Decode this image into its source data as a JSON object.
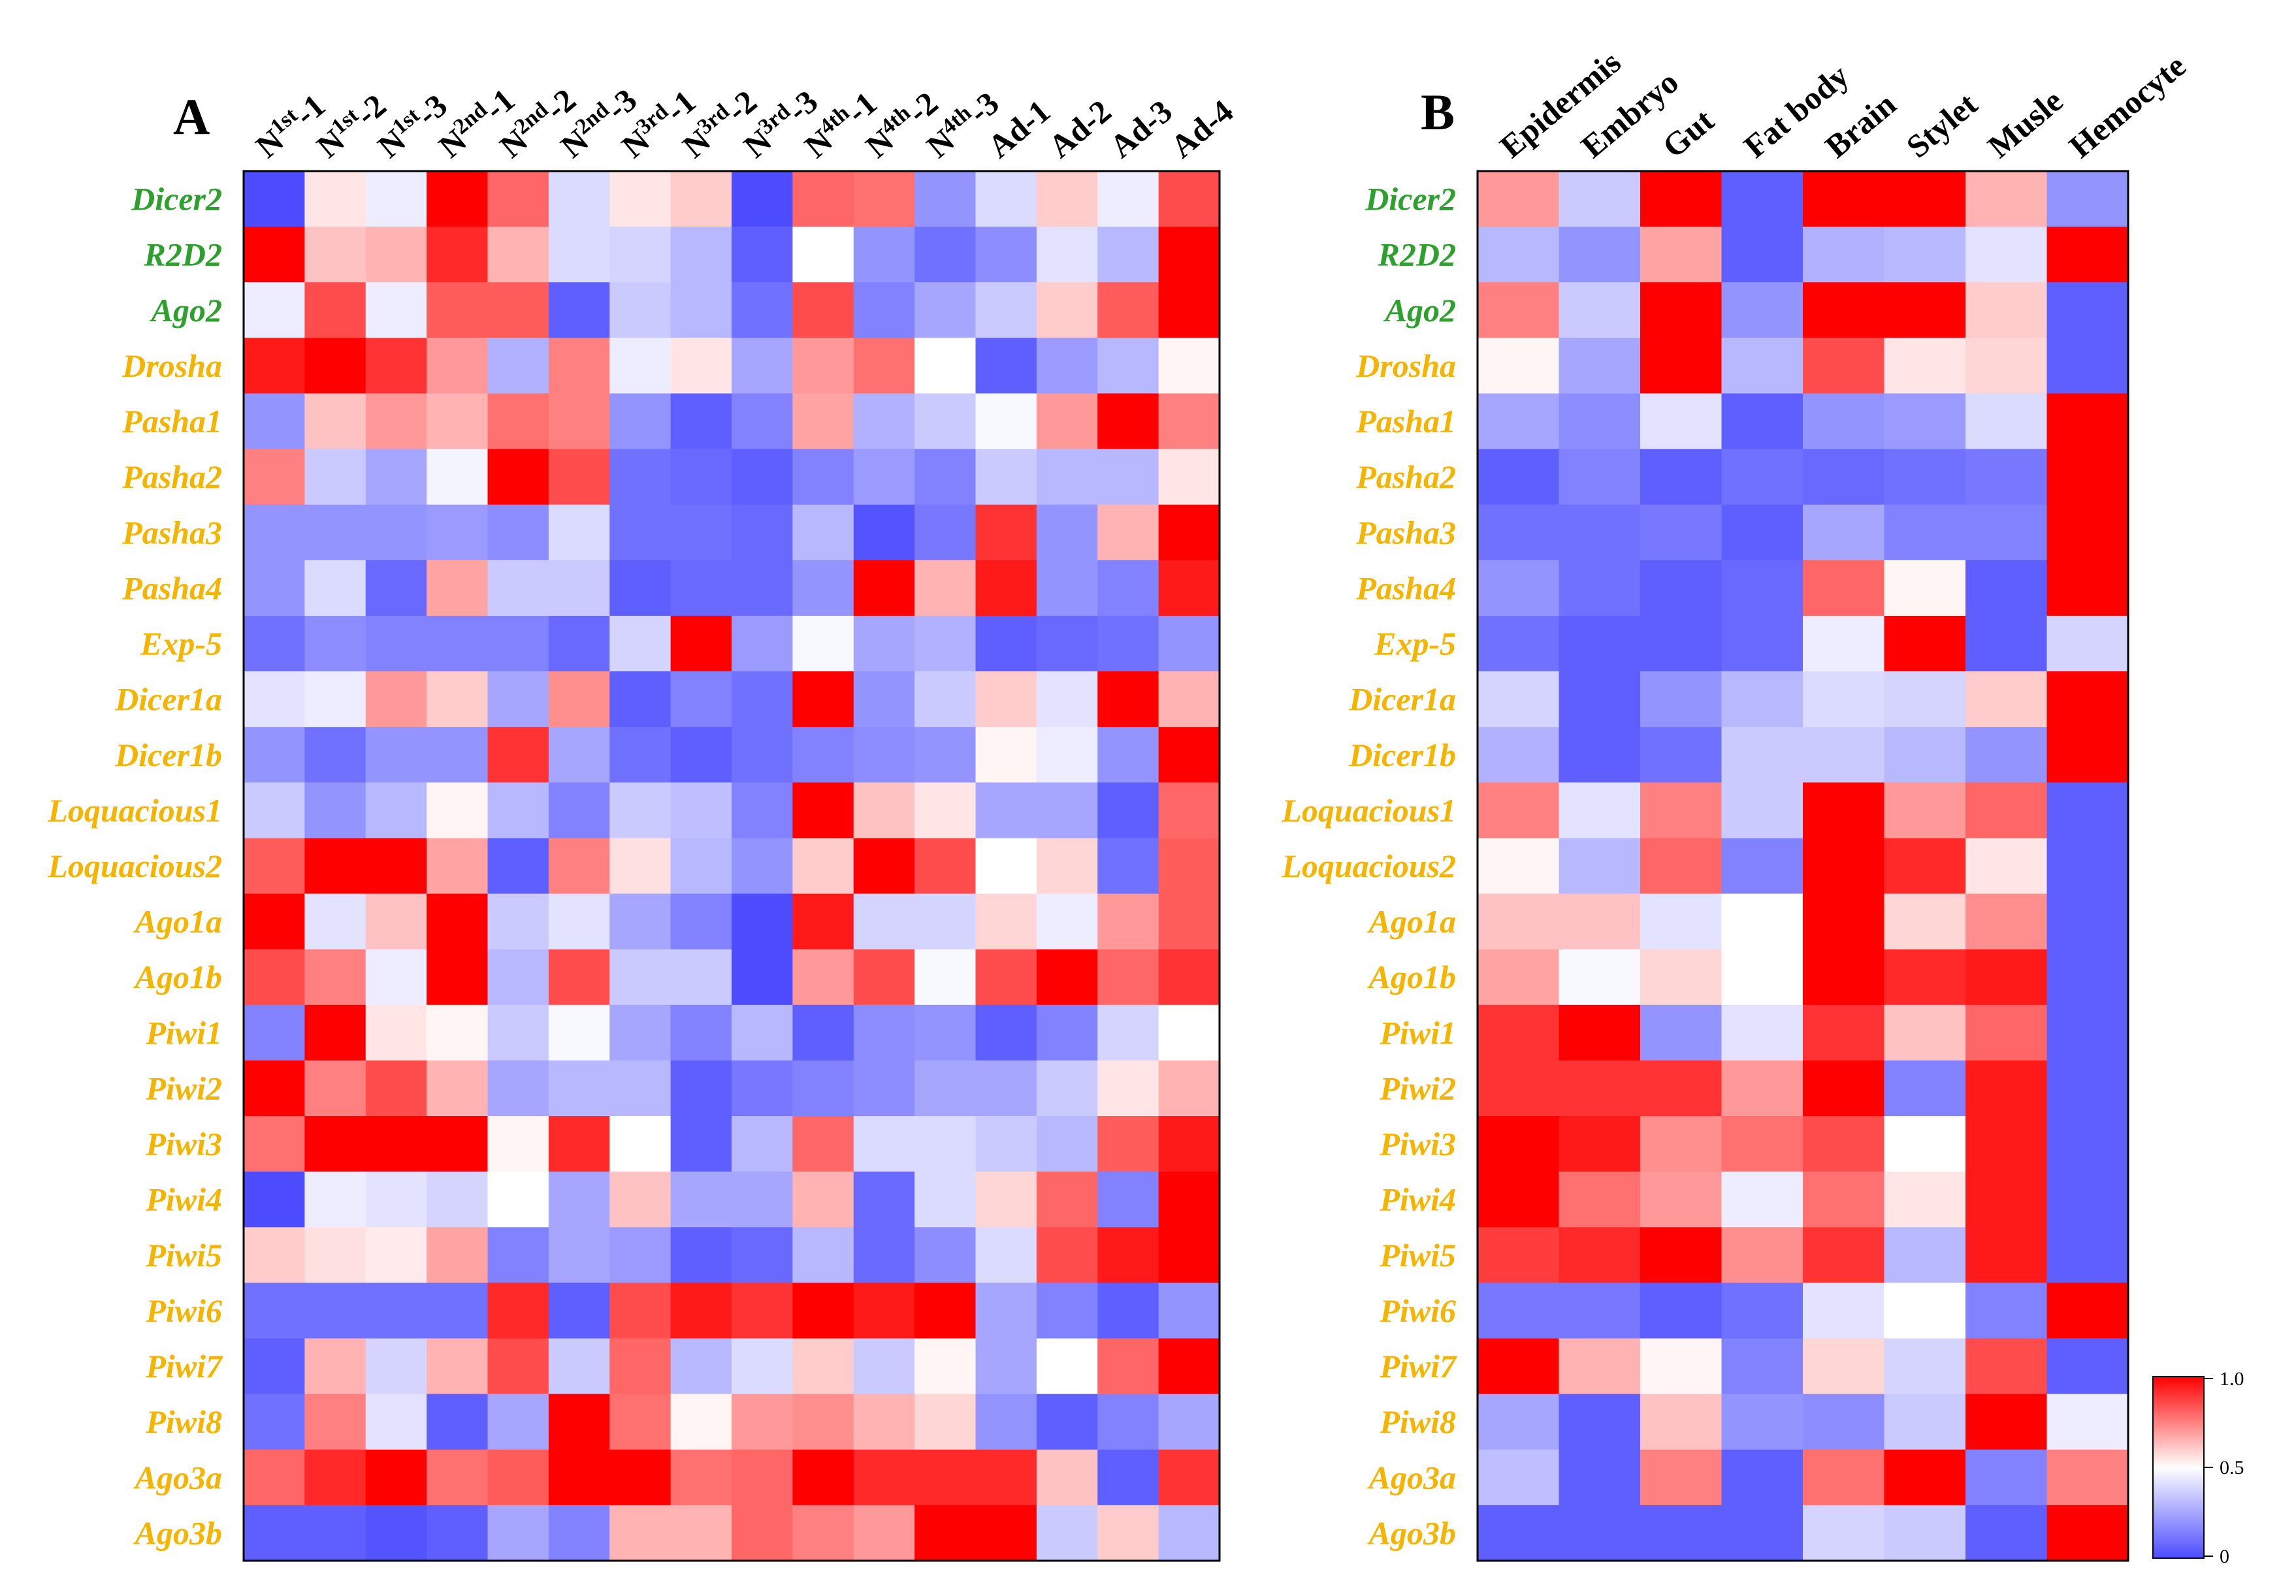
{
  "colors": {
    "green_label": "#2ea02e",
    "orange_label": "#f5b400",
    "low": "#4d4dff",
    "mid": "#ffffff",
    "high": "#ff0000"
  },
  "chart_data": [
    {
      "type": "heatmap",
      "panel": "A",
      "columns": [
        {
          "base": "N",
          "sup": "1st",
          "suffix": "-1"
        },
        {
          "base": "N",
          "sup": "1st",
          "suffix": "-2"
        },
        {
          "base": "N",
          "sup": "1st",
          "suffix": "-3"
        },
        {
          "base": "N",
          "sup": "2nd",
          "suffix": "-1"
        },
        {
          "base": "N",
          "sup": "2nd",
          "suffix": "-2"
        },
        {
          "base": "N",
          "sup": "2nd",
          "suffix": "-3"
        },
        {
          "base": "N",
          "sup": "3rd",
          "suffix": "-1"
        },
        {
          "base": "N",
          "sup": "3rd",
          "suffix": "-2"
        },
        {
          "base": "N",
          "sup": "3rd",
          "suffix": "-3"
        },
        {
          "base": "N",
          "sup": "4th",
          "suffix": "-1"
        },
        {
          "base": "N",
          "sup": "4th",
          "suffix": "-2"
        },
        {
          "base": "N",
          "sup": "4th",
          "suffix": "-3"
        },
        {
          "base": "Ad-1",
          "sup": "",
          "suffix": ""
        },
        {
          "base": "Ad-2",
          "sup": "",
          "suffix": ""
        },
        {
          "base": "Ad-3",
          "sup": "",
          "suffix": ""
        },
        {
          "base": "Ad-4",
          "sup": "",
          "suffix": ""
        }
      ],
      "rows": [
        {
          "label": "Dicer2",
          "group": "green",
          "values": [
            0.0,
            0.55,
            0.45,
            1.0,
            0.8,
            0.4,
            0.55,
            0.6,
            0.0,
            0.8,
            0.78,
            0.2,
            0.4,
            0.6,
            0.45,
            0.85
          ]
        },
        {
          "label": "R2D2",
          "group": "green",
          "values": [
            1.0,
            0.62,
            0.65,
            0.92,
            0.65,
            0.4,
            0.38,
            0.3,
            0.05,
            0.5,
            0.2,
            0.1,
            0.18,
            0.42,
            0.3,
            1.0
          ]
        },
        {
          "label": "Ago2",
          "group": "green",
          "values": [
            0.45,
            0.85,
            0.45,
            0.82,
            0.82,
            0.05,
            0.35,
            0.3,
            0.1,
            0.85,
            0.15,
            0.25,
            0.35,
            0.6,
            0.82,
            1.0
          ]
        },
        {
          "label": "Drosha",
          "group": "orange",
          "values": [
            0.95,
            1.0,
            0.9,
            0.7,
            0.28,
            0.75,
            0.45,
            0.55,
            0.25,
            0.7,
            0.78,
            0.5,
            0.05,
            0.22,
            0.3,
            0.52
          ]
        },
        {
          "label": "Pasha1",
          "group": "orange",
          "values": [
            0.2,
            0.62,
            0.7,
            0.65,
            0.78,
            0.75,
            0.2,
            0.05,
            0.15,
            0.68,
            0.28,
            0.35,
            0.48,
            0.7,
            1.0,
            0.75
          ]
        },
        {
          "label": "Pasha2",
          "group": "orange",
          "values": [
            0.75,
            0.35,
            0.25,
            0.47,
            1.0,
            0.85,
            0.1,
            0.08,
            0.05,
            0.15,
            0.22,
            0.15,
            0.35,
            0.3,
            0.3,
            0.55
          ]
        },
        {
          "label": "Pasha3",
          "group": "orange",
          "values": [
            0.2,
            0.2,
            0.2,
            0.22,
            0.18,
            0.4,
            0.1,
            0.1,
            0.08,
            0.3,
            0.02,
            0.12,
            0.9,
            0.2,
            0.65,
            1.0
          ]
        },
        {
          "label": "Pasha4",
          "group": "orange",
          "values": [
            0.2,
            0.4,
            0.08,
            0.68,
            0.35,
            0.35,
            0.05,
            0.08,
            0.08,
            0.2,
            1.0,
            0.65,
            0.95,
            0.2,
            0.15,
            0.95
          ]
        },
        {
          "label": "Exp-5",
          "group": "orange",
          "values": [
            0.1,
            0.18,
            0.15,
            0.15,
            0.15,
            0.08,
            0.38,
            1.0,
            0.22,
            0.48,
            0.25,
            0.28,
            0.05,
            0.08,
            0.1,
            0.2
          ]
        },
        {
          "label": "Dicer1a",
          "group": "orange",
          "values": [
            0.42,
            0.45,
            0.7,
            0.6,
            0.25,
            0.72,
            0.05,
            0.15,
            0.1,
            1.0,
            0.2,
            0.35,
            0.6,
            0.42,
            1.0,
            0.65
          ]
        },
        {
          "label": "Dicer1b",
          "group": "orange",
          "values": [
            0.2,
            0.1,
            0.2,
            0.2,
            0.9,
            0.25,
            0.1,
            0.05,
            0.1,
            0.15,
            0.18,
            0.2,
            0.52,
            0.45,
            0.2,
            1.0
          ]
        },
        {
          "label": "Loquacious1",
          "group": "orange",
          "values": [
            0.35,
            0.2,
            0.3,
            0.52,
            0.3,
            0.15,
            0.35,
            0.32,
            0.15,
            1.0,
            0.62,
            0.55,
            0.25,
            0.25,
            0.05,
            0.8
          ]
        },
        {
          "label": "Loquacious2",
          "group": "orange",
          "values": [
            0.82,
            1.0,
            1.0,
            0.68,
            0.05,
            0.75,
            0.56,
            0.3,
            0.2,
            0.6,
            1.0,
            0.85,
            0.5,
            0.58,
            0.1,
            0.82
          ]
        },
        {
          "label": "Ago1a",
          "group": "orange",
          "values": [
            1.0,
            0.42,
            0.62,
            1.0,
            0.35,
            0.42,
            0.25,
            0.15,
            0.0,
            0.95,
            0.38,
            0.38,
            0.58,
            0.45,
            0.7,
            0.82
          ]
        },
        {
          "label": "Ago1b",
          "group": "orange",
          "values": [
            0.85,
            0.75,
            0.45,
            1.0,
            0.3,
            0.85,
            0.35,
            0.35,
            0.0,
            0.7,
            0.85,
            0.48,
            0.85,
            1.0,
            0.8,
            0.9
          ]
        },
        {
          "label": "Piwi1",
          "group": "orange",
          "values": [
            0.15,
            1.0,
            0.55,
            0.52,
            0.35,
            0.48,
            0.25,
            0.15,
            0.3,
            0.05,
            0.18,
            0.2,
            0.05,
            0.15,
            0.38,
            0.5
          ]
        },
        {
          "label": "Piwi2",
          "group": "orange",
          "values": [
            1.0,
            0.75,
            0.85,
            0.65,
            0.25,
            0.3,
            0.3,
            0.05,
            0.12,
            0.15,
            0.18,
            0.25,
            0.25,
            0.35,
            0.55,
            0.65
          ]
        },
        {
          "label": "Piwi3",
          "group": "orange",
          "values": [
            0.78,
            1.0,
            1.0,
            1.0,
            0.52,
            0.92,
            0.5,
            0.05,
            0.3,
            0.8,
            0.4,
            0.4,
            0.35,
            0.3,
            0.82,
            0.95
          ]
        },
        {
          "label": "Piwi4",
          "group": "orange",
          "values": [
            0.0,
            0.45,
            0.42,
            0.38,
            0.5,
            0.25,
            0.62,
            0.25,
            0.25,
            0.65,
            0.08,
            0.4,
            0.58,
            0.8,
            0.15,
            1.0
          ]
        },
        {
          "label": "Piwi5",
          "group": "orange",
          "values": [
            0.6,
            0.56,
            0.54,
            0.68,
            0.15,
            0.25,
            0.22,
            0.05,
            0.08,
            0.3,
            0.08,
            0.18,
            0.4,
            0.85,
            0.95,
            1.0
          ]
        },
        {
          "label": "Piwi6",
          "group": "orange",
          "values": [
            0.1,
            0.1,
            0.1,
            0.1,
            0.92,
            0.05,
            0.85,
            0.95,
            0.9,
            1.0,
            0.95,
            1.0,
            0.25,
            0.15,
            0.05,
            0.2
          ]
        },
        {
          "label": "Piwi7",
          "group": "orange",
          "values": [
            0.05,
            0.65,
            0.38,
            0.65,
            0.85,
            0.35,
            0.8,
            0.3,
            0.4,
            0.6,
            0.35,
            0.52,
            0.25,
            0.5,
            0.8,
            1.0
          ]
        },
        {
          "label": "Piwi8",
          "group": "orange",
          "values": [
            0.1,
            0.75,
            0.42,
            0.05,
            0.25,
            1.0,
            0.78,
            0.52,
            0.7,
            0.72,
            0.65,
            0.58,
            0.2,
            0.05,
            0.15,
            0.25
          ]
        },
        {
          "label": "Ago3a",
          "group": "orange",
          "values": [
            0.8,
            0.92,
            1.0,
            0.78,
            0.82,
            1.0,
            1.0,
            0.78,
            0.8,
            1.0,
            0.92,
            0.92,
            0.92,
            0.62,
            0.05,
            0.9
          ]
        },
        {
          "label": "Ago3b",
          "group": "orange",
          "values": [
            0.05,
            0.05,
            0.02,
            0.05,
            0.25,
            0.15,
            0.65,
            0.65,
            0.8,
            0.75,
            0.7,
            1.0,
            1.0,
            0.35,
            0.6,
            0.3
          ]
        }
      ]
    },
    {
      "type": "heatmap",
      "panel": "B",
      "columns": [
        {
          "base": "Epidermis",
          "sup": "",
          "suffix": ""
        },
        {
          "base": "Embryo",
          "sup": "",
          "suffix": ""
        },
        {
          "base": "Gut",
          "sup": "",
          "suffix": ""
        },
        {
          "base": "Fat body",
          "sup": "",
          "suffix": ""
        },
        {
          "base": "Brain",
          "sup": "",
          "suffix": ""
        },
        {
          "base": "Stylet",
          "sup": "",
          "suffix": ""
        },
        {
          "base": "Musle",
          "sup": "",
          "suffix": ""
        },
        {
          "base": "Hemocyte",
          "sup": "",
          "suffix": ""
        }
      ],
      "rows": [
        {
          "label": "Dicer2",
          "group": "green",
          "values": [
            0.7,
            0.35,
            1.0,
            0.05,
            1.0,
            1.0,
            0.65,
            0.2
          ]
        },
        {
          "label": "R2D2",
          "group": "green",
          "values": [
            0.3,
            0.2,
            0.68,
            0.05,
            0.28,
            0.3,
            0.42,
            1.0
          ]
        },
        {
          "label": "Ago2",
          "group": "green",
          "values": [
            0.75,
            0.35,
            1.0,
            0.2,
            1.0,
            1.0,
            0.6,
            0.05
          ]
        },
        {
          "label": "Drosha",
          "group": "orange",
          "values": [
            0.52,
            0.25,
            1.0,
            0.3,
            0.85,
            0.55,
            0.58,
            0.05
          ]
        },
        {
          "label": "Pasha1",
          "group": "orange",
          "values": [
            0.25,
            0.18,
            0.42,
            0.05,
            0.2,
            0.22,
            0.4,
            1.0
          ]
        },
        {
          "label": "Pasha2",
          "group": "orange",
          "values": [
            0.05,
            0.15,
            0.05,
            0.1,
            0.08,
            0.1,
            0.12,
            1.0
          ]
        },
        {
          "label": "Pasha3",
          "group": "orange",
          "values": [
            0.1,
            0.1,
            0.12,
            0.05,
            0.25,
            0.15,
            0.15,
            1.0
          ]
        },
        {
          "label": "Pasha4",
          "group": "orange",
          "values": [
            0.2,
            0.1,
            0.05,
            0.08,
            0.8,
            0.52,
            0.05,
            1.0
          ]
        },
        {
          "label": "Exp-5",
          "group": "orange",
          "values": [
            0.1,
            0.05,
            0.05,
            0.08,
            0.45,
            1.0,
            0.05,
            0.38
          ]
        },
        {
          "label": "Dicer1a",
          "group": "orange",
          "values": [
            0.38,
            0.05,
            0.2,
            0.3,
            0.4,
            0.38,
            0.6,
            1.0
          ]
        },
        {
          "label": "Dicer1b",
          "group": "orange",
          "values": [
            0.28,
            0.05,
            0.1,
            0.35,
            0.35,
            0.3,
            0.2,
            1.0
          ]
        },
        {
          "label": "Loquacious1",
          "group": "orange",
          "values": [
            0.75,
            0.42,
            0.75,
            0.35,
            1.0,
            0.7,
            0.8,
            0.05
          ]
        },
        {
          "label": "Loquacious2",
          "group": "orange",
          "values": [
            0.52,
            0.3,
            0.8,
            0.15,
            1.0,
            0.92,
            0.55,
            0.05
          ]
        },
        {
          "label": "Ago1a",
          "group": "orange",
          "values": [
            0.62,
            0.62,
            0.42,
            0.5,
            1.0,
            0.58,
            0.72,
            0.05
          ]
        },
        {
          "label": "Ago1b",
          "group": "orange",
          "values": [
            0.68,
            0.48,
            0.58,
            0.5,
            1.0,
            0.92,
            0.95,
            0.05
          ]
        },
        {
          "label": "Piwi1",
          "group": "orange",
          "values": [
            0.9,
            1.0,
            0.2,
            0.42,
            0.9,
            0.62,
            0.8,
            0.05
          ]
        },
        {
          "label": "Piwi2",
          "group": "orange",
          "values": [
            0.9,
            0.9,
            0.9,
            0.7,
            1.0,
            0.15,
            0.95,
            0.05
          ]
        },
        {
          "label": "Piwi3",
          "group": "orange",
          "values": [
            1.0,
            0.95,
            0.72,
            0.78,
            0.85,
            0.5,
            0.95,
            0.05
          ]
        },
        {
          "label": "Piwi4",
          "group": "orange",
          "values": [
            1.0,
            0.78,
            0.7,
            0.45,
            0.78,
            0.55,
            0.95,
            0.05
          ]
        },
        {
          "label": "Piwi5",
          "group": "orange",
          "values": [
            0.88,
            0.92,
            1.0,
            0.72,
            0.9,
            0.3,
            0.95,
            0.05
          ]
        },
        {
          "label": "Piwi6",
          "group": "orange",
          "values": [
            0.12,
            0.12,
            0.05,
            0.1,
            0.42,
            0.5,
            0.15,
            1.0
          ]
        },
        {
          "label": "Piwi7",
          "group": "orange",
          "values": [
            1.0,
            0.65,
            0.52,
            0.15,
            0.58,
            0.38,
            0.85,
            0.05
          ]
        },
        {
          "label": "Piwi8",
          "group": "orange",
          "values": [
            0.25,
            0.05,
            0.62,
            0.2,
            0.18,
            0.35,
            1.0,
            0.45
          ]
        },
        {
          "label": "Ago3a",
          "group": "orange",
          "values": [
            0.32,
            0.05,
            0.75,
            0.05,
            0.78,
            1.0,
            0.15,
            0.75
          ]
        },
        {
          "label": "Ago3b",
          "group": "orange",
          "values": [
            0.05,
            0.05,
            0.05,
            0.05,
            0.38,
            0.35,
            0.05,
            1.0
          ]
        }
      ]
    }
  ],
  "colorbar": {
    "ticks": [
      "1.0",
      "0.5",
      "0"
    ],
    "range": [
      0,
      1
    ]
  }
}
